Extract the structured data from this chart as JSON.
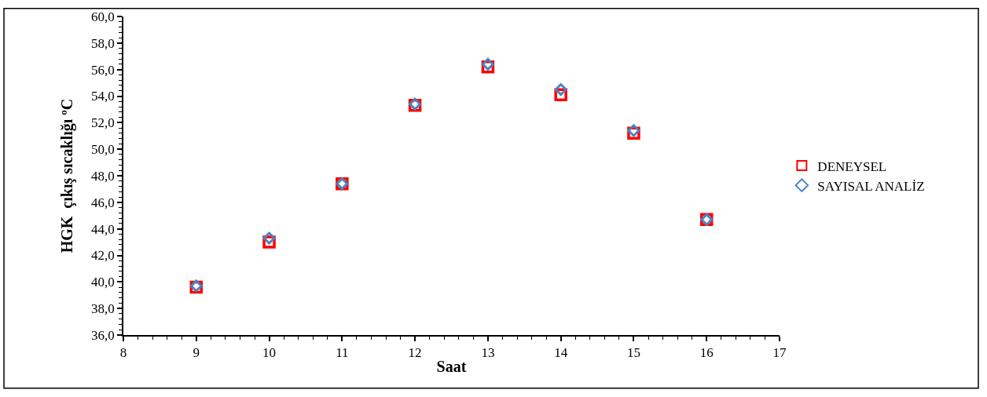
{
  "chart_data": {
    "type": "scatter",
    "xlabel": "Saat",
    "ylabel": "HGK  çıkış sıcaklığı ºC",
    "x": [
      9,
      10,
      11,
      12,
      13,
      14,
      15,
      16
    ],
    "series": [
      {
        "name": "DENEYSEL",
        "color": "#ff0000",
        "marker": "square",
        "values": [
          39.6,
          43.0,
          47.4,
          53.3,
          56.2,
          54.1,
          51.2,
          44.7
        ]
      },
      {
        "name": "SAYISAL ANALİZ",
        "color": "#4f81bd",
        "marker": "diamond",
        "values": [
          39.7,
          43.3,
          47.4,
          53.4,
          56.4,
          54.5,
          51.4,
          44.7
        ]
      }
    ],
    "xlim": [
      8,
      17
    ],
    "xticks": [
      8,
      9,
      10,
      11,
      12,
      13,
      14,
      15,
      16,
      17
    ],
    "ylim": [
      36,
      60
    ],
    "yticks": [
      {
        "value": 36,
        "label": "36,0"
      },
      {
        "value": 38,
        "label": "38,0"
      },
      {
        "value": 40,
        "label": "40,0"
      },
      {
        "value": 42,
        "label": "42,0"
      },
      {
        "value": 44,
        "label": "44,0"
      },
      {
        "value": 46,
        "label": "46,0"
      },
      {
        "value": 48,
        "label": "48,0"
      },
      {
        "value": 50,
        "label": "50,0"
      },
      {
        "value": 52,
        "label": "52,0"
      },
      {
        "value": 54,
        "label": "54,0"
      },
      {
        "value": 56,
        "label": "56,0"
      },
      {
        "value": 58,
        "label": "58,0"
      },
      {
        "value": 60,
        "label": "60,0"
      }
    ],
    "legend": "right"
  }
}
